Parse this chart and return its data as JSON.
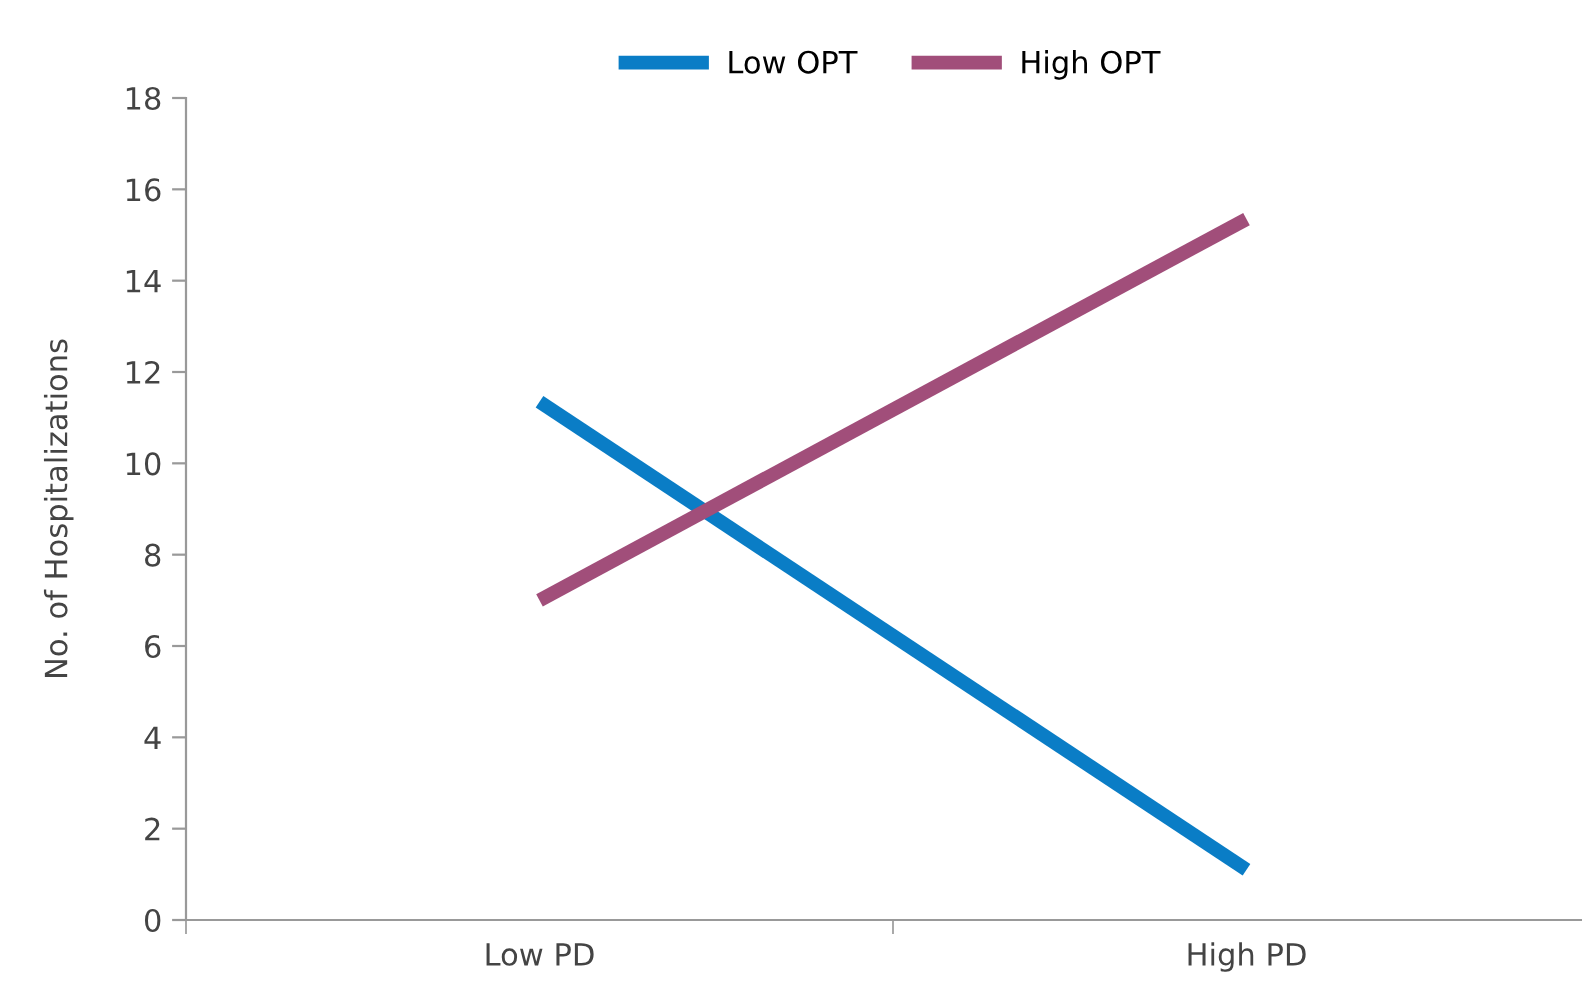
{
  "chart_data": {
    "type": "line",
    "ylabel": "No. of Hospitalizations",
    "categories": [
      "Low PD",
      "High PD"
    ],
    "series": [
      {
        "name": "Low OPT",
        "color": "#0a7dc6",
        "values": [
          11.35,
          1.1
        ]
      },
      {
        "name": "High OPT",
        "color": "#a14e7a",
        "values": [
          7.0,
          15.35
        ]
      }
    ],
    "ylim": [
      0,
      18
    ],
    "yticks": [
      0,
      2,
      4,
      6,
      8,
      10,
      12,
      14,
      16,
      18
    ],
    "grid": false,
    "legend": "top",
    "marker": "none",
    "line_style": "solid"
  }
}
